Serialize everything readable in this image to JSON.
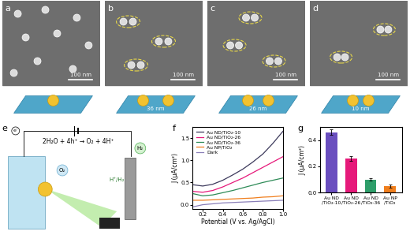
{
  "panels": {
    "a": {
      "label": "a",
      "scale_bar": "100 nm"
    },
    "b": {
      "label": "b",
      "scale_bar": "100 nm",
      "gap": "36 nm"
    },
    "c": {
      "label": "c",
      "scale_bar": "100 nm",
      "gap": "26 nm"
    },
    "d": {
      "label": "d",
      "scale_bar": "100 nm",
      "gap": "10 nm"
    },
    "e": {
      "label": "e",
      "reaction": "2H₂O + 4h⁺ → O₂ + 4H⁺",
      "products": [
        "O₂",
        "H₂"
      ],
      "couple": "H⁺/H₂",
      "electron": "e⁻"
    },
    "f": {
      "label": "f"
    },
    "g": {
      "label": "g"
    }
  },
  "chart_data": [
    {
      "type": "line",
      "x_label": "Potential (V vs. Ag/AgCl)",
      "y_label": "J (μA/cm²)",
      "x": [
        0.1,
        0.2,
        0.3,
        0.4,
        0.5,
        0.6,
        0.7,
        0.8,
        0.9,
        1.0
      ],
      "series": [
        {
          "name": "Au ND/TiO₂-10",
          "color": "#3d3a5c",
          "values": [
            0.45,
            0.42,
            0.46,
            0.55,
            0.67,
            0.8,
            0.96,
            1.14,
            1.38,
            1.65
          ]
        },
        {
          "name": "Au ND/TiO₂-26",
          "color": "#e6197a",
          "values": [
            0.3,
            0.28,
            0.32,
            0.4,
            0.5,
            0.6,
            0.72,
            0.84,
            0.96,
            1.08
          ]
        },
        {
          "name": "Au ND/TiO₂-36",
          "color": "#2e8b57",
          "values": [
            0.25,
            0.2,
            0.22,
            0.27,
            0.32,
            0.38,
            0.44,
            0.5,
            0.55,
            0.6
          ]
        },
        {
          "name": "Au NP/TiO₂",
          "color": "#f07f1e",
          "values": [
            0.1,
            0.1,
            0.11,
            0.12,
            0.13,
            0.14,
            0.15,
            0.17,
            0.18,
            0.2
          ]
        },
        {
          "name": "Dark",
          "color": "#8a7fb8",
          "values": [
            -0.05,
            0.0,
            0.02,
            0.04,
            0.05,
            0.06,
            0.07,
            0.08,
            0.09,
            0.1
          ]
        }
      ],
      "xlim": [
        0.1,
        1.0
      ],
      "xticks": [
        0.2,
        0.4,
        0.6,
        0.8,
        1.0
      ],
      "ylim": [
        -0.1,
        1.75
      ],
      "yticks": [
        0.0,
        0.5,
        1.0,
        1.5
      ],
      "legend": "upper left"
    },
    {
      "type": "bar",
      "y_label": "J (μA/cm²)",
      "categories": [
        "Au ND\n/TiO₂-10",
        "Au ND\n/TiO₂-26",
        "Au ND\n/TiO₂-36",
        "Au NP\n/TiO₂"
      ],
      "values": [
        0.46,
        0.26,
        0.1,
        0.05
      ],
      "errors": [
        0.02,
        0.02,
        0.01,
        0.01
      ],
      "colors": [
        "#6a4fbf",
        "#e6197a",
        "#2e9e6a",
        "#f07f1e"
      ],
      "ylim": [
        0,
        0.5
      ],
      "yticks": [
        0.0,
        0.2,
        0.4
      ]
    }
  ]
}
